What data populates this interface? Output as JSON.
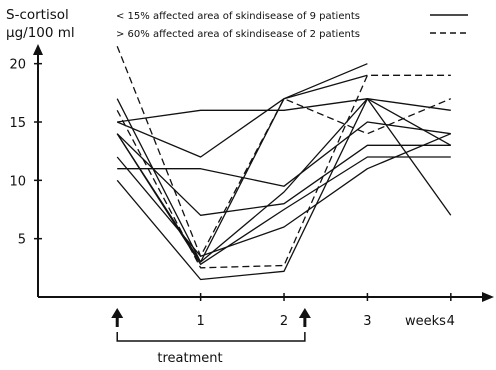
{
  "chart_data": {
    "type": "line",
    "ylabel_line1": "S-cortisol",
    "ylabel_line2": "µg/100 ml",
    "xlabel": "weeks",
    "x_ticks": [
      "1",
      "2",
      "3",
      "4"
    ],
    "y_ticks": [
      "5",
      "10",
      "15",
      "20"
    ],
    "ylim": [
      0,
      21
    ],
    "xlim": [
      -0.95,
      4.35
    ],
    "legend": [
      {
        "label": "< 15% affected area of skindisease of 9 patients",
        "style": "solid"
      },
      {
        "label": "> 60% affected area of skindisease of 2 patients",
        "style": "dashed"
      }
    ],
    "treatment_label": "treatment",
    "treatment_start_x": 0,
    "treatment_end_x": 2.25,
    "series": [
      {
        "style": "solid",
        "x": [
          0,
          1,
          2,
          3,
          4
        ],
        "y": [
          15,
          12,
          17,
          20,
          null
        ]
      },
      {
        "style": "solid",
        "x": [
          0,
          1,
          2,
          3,
          4
        ],
        "y": [
          17,
          3,
          17,
          19,
          null
        ]
      },
      {
        "style": "solid",
        "x": [
          0,
          1,
          2,
          3,
          4
        ],
        "y": [
          15,
          16,
          16,
          17,
          16
        ]
      },
      {
        "style": "solid",
        "x": [
          0,
          1,
          2,
          3,
          4
        ],
        "y": [
          11,
          11,
          9.5,
          15,
          14
        ]
      },
      {
        "style": "solid",
        "x": [
          0,
          1,
          2,
          3,
          4
        ],
        "y": [
          14,
          3,
          9,
          17,
          7
        ]
      },
      {
        "style": "solid",
        "x": [
          0,
          1,
          2,
          3,
          4
        ],
        "y": [
          14,
          7,
          8,
          13,
          13
        ]
      },
      {
        "style": "solid",
        "x": [
          0,
          1,
          2,
          3,
          4
        ],
        "y": [
          14,
          2.8,
          7.5,
          12,
          12
        ]
      },
      {
        "style": "solid",
        "x": [
          0,
          1,
          2,
          3,
          4
        ],
        "y": [
          12,
          3.5,
          6,
          11,
          14
        ]
      },
      {
        "style": "solid",
        "x": [
          0,
          1,
          2,
          3,
          4
        ],
        "y": [
          10,
          1.5,
          2.2,
          17,
          13
        ]
      },
      {
        "style": "dashed",
        "x": [
          0,
          1,
          2,
          3,
          4
        ],
        "y": [
          21.5,
          3.5,
          17,
          14,
          17
        ]
      },
      {
        "style": "dashed",
        "x": [
          0,
          1,
          2,
          3,
          4
        ],
        "y": [
          16,
          2.5,
          2.7,
          19,
          19
        ]
      }
    ]
  }
}
